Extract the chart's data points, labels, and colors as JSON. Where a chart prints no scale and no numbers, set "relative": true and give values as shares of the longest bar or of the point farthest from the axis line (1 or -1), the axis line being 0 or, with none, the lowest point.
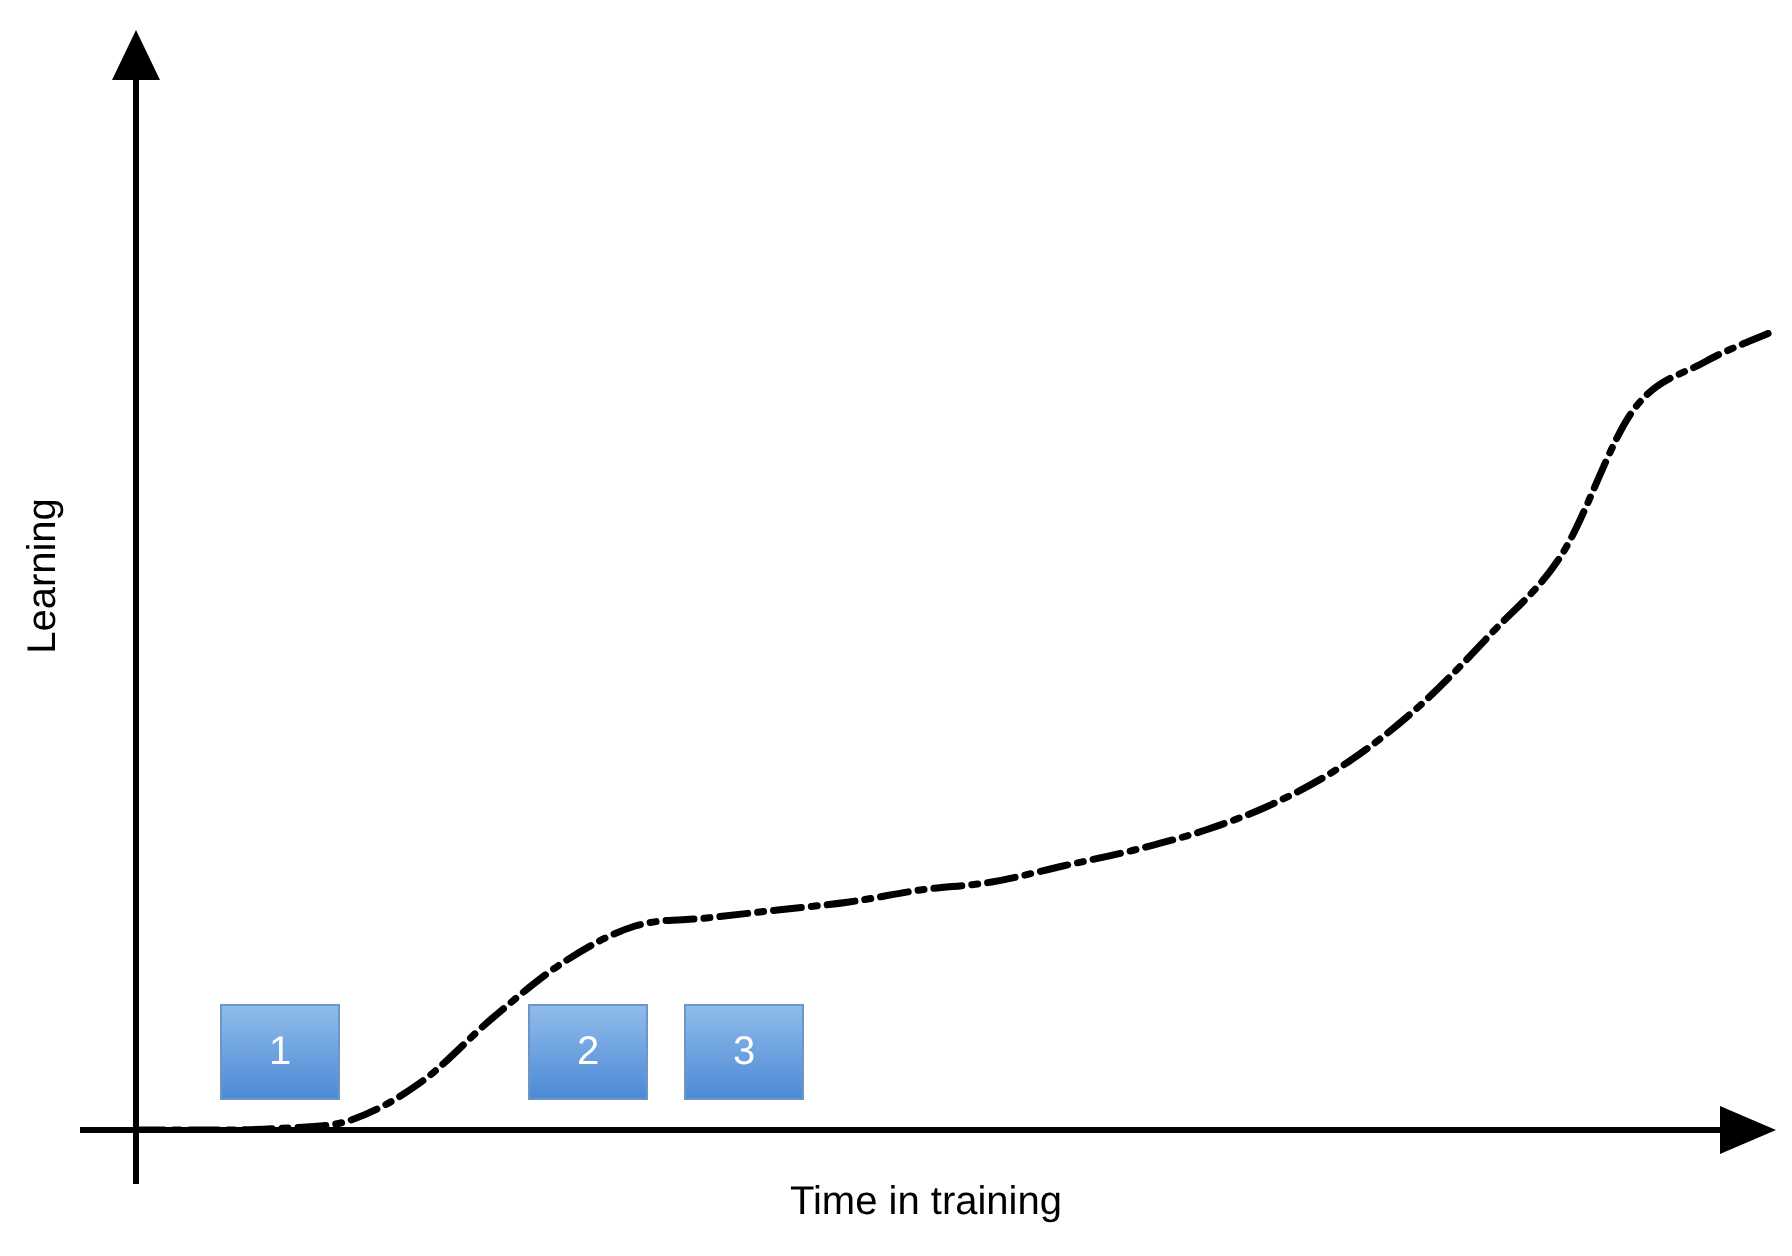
{
  "chart_data": {
    "type": "line",
    "relative": true,
    "xlabel": "Time in training",
    "ylabel": "Learning",
    "categories": [
      null,
      null,
      null,
      null,
      null,
      null,
      null,
      null,
      null,
      null,
      null,
      null,
      null,
      null,
      null,
      null,
      null,
      null,
      null,
      null,
      null,
      null,
      null,
      null
    ],
    "series": [
      {
        "color": "#000000",
        "line_style": "dashed",
        "values": [
          0,
          0,
          0.002,
          0.012,
          0.06,
          0.14,
          0.21,
          0.255,
          0.265,
          0.275,
          0.285,
          0.3,
          0.31,
          0.33,
          0.35,
          0.375,
          0.41,
          0.46,
          0.53,
          0.62,
          0.72,
          0.9,
          0.96,
          1
        ]
      }
    ],
    "annotations": [
      "1",
      "2",
      "3"
    ],
    "grid": false,
    "legend": false,
    "marker": "none"
  }
}
